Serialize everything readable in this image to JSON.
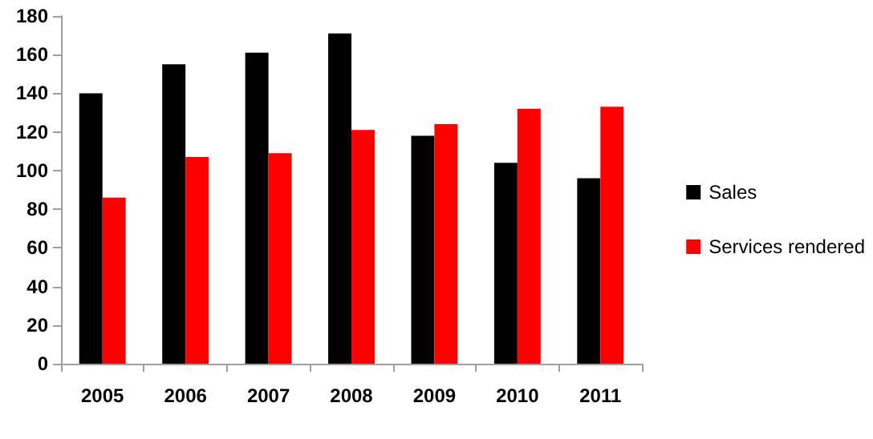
{
  "chart_data": {
    "type": "bar",
    "categories": [
      "2005",
      "2006",
      "2007",
      "2008",
      "2009",
      "2010",
      "2011"
    ],
    "series": [
      {
        "name": "Sales",
        "color": "#000000",
        "values": [
          140,
          155,
          161,
          171,
          118,
          104,
          96
        ]
      },
      {
        "name": "Services rendered",
        "color": "#ff0000",
        "values": [
          86,
          107,
          109,
          121,
          124,
          132,
          133
        ]
      }
    ],
    "ylim": [
      0,
      180
    ],
    "yticks": [
      0,
      20,
      40,
      60,
      80,
      100,
      120,
      140,
      160,
      180
    ],
    "grid": false,
    "legend": "right"
  }
}
